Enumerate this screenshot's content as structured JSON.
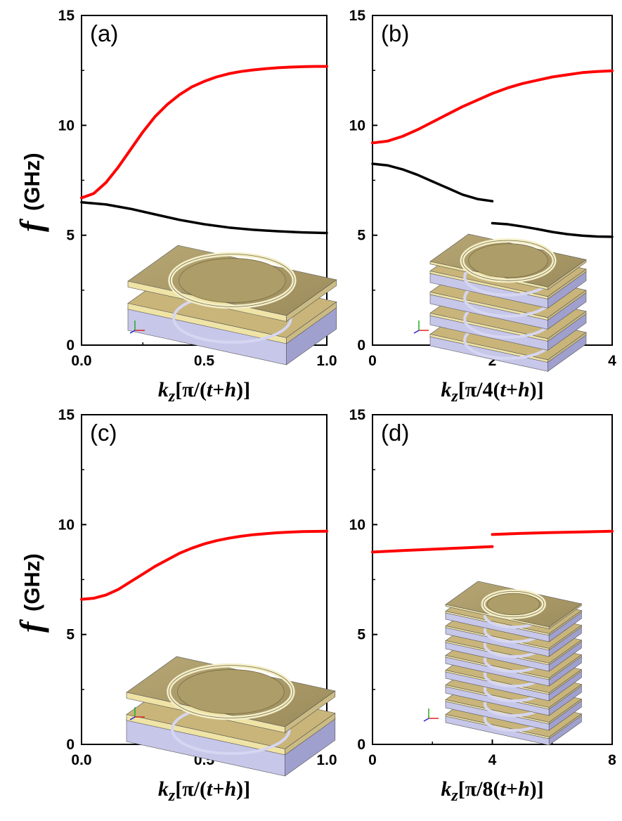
{
  "figure": {
    "ylabel_symbol": "f",
    "ylabel_unit": "(GHz)"
  },
  "chart_data": [
    {
      "type": "line",
      "panel": "(a)",
      "xlabel": "kz[π/(t+h)]",
      "xlim": [
        0,
        1
      ],
      "ylim": [
        0,
        15
      ],
      "xticks": [
        "0.0",
        "0.5",
        "1.0"
      ],
      "yticks": [
        "0",
        "5",
        "10",
        "15"
      ],
      "series": [
        {
          "name": "upper band",
          "color": "#ff0000",
          "x": [
            0,
            0.05,
            0.1,
            0.15,
            0.2,
            0.25,
            0.3,
            0.35,
            0.4,
            0.45,
            0.5,
            0.55,
            0.6,
            0.65,
            0.7,
            0.75,
            0.8,
            0.85,
            0.9,
            0.95,
            1.0
          ],
          "y": [
            6.7,
            6.9,
            7.4,
            8.1,
            8.9,
            9.7,
            10.4,
            10.95,
            11.4,
            11.75,
            12.0,
            12.2,
            12.35,
            12.45,
            12.52,
            12.58,
            12.62,
            12.65,
            12.67,
            12.68,
            12.68
          ]
        },
        {
          "name": "lower band",
          "color": "#000000",
          "x": [
            0,
            0.1,
            0.2,
            0.3,
            0.4,
            0.5,
            0.6,
            0.7,
            0.8,
            0.9,
            1.0
          ],
          "y": [
            6.5,
            6.4,
            6.2,
            5.95,
            5.7,
            5.5,
            5.35,
            5.25,
            5.18,
            5.13,
            5.1
          ]
        }
      ]
    },
    {
      "type": "line",
      "panel": "(b)",
      "xlabel": "kz[π/4(t+h)]",
      "xlim": [
        0,
        4
      ],
      "ylim": [
        0,
        15
      ],
      "xticks": [
        "0",
        "2",
        "4"
      ],
      "yticks": [
        "0",
        "5",
        "10",
        "15"
      ],
      "series": [
        {
          "name": "upper band",
          "color": "#ff0000",
          "x": [
            0,
            0.25,
            0.5,
            0.75,
            1.0,
            1.25,
            1.5,
            1.75,
            2.0,
            2.25,
            2.5,
            2.75,
            3.0,
            3.25,
            3.5,
            3.75,
            4.0
          ],
          "y": [
            9.2,
            9.28,
            9.5,
            9.8,
            10.15,
            10.5,
            10.85,
            11.15,
            11.45,
            11.7,
            11.9,
            12.05,
            12.2,
            12.3,
            12.4,
            12.45,
            12.48
          ]
        },
        {
          "name": "lower band segment 1",
          "color": "#000000",
          "x": [
            0,
            0.25,
            0.5,
            0.75,
            1.0,
            1.25,
            1.5,
            1.75,
            2.0
          ],
          "y": [
            8.25,
            8.18,
            8.0,
            7.75,
            7.45,
            7.15,
            6.85,
            6.65,
            6.55
          ]
        },
        {
          "name": "lower band segment 2",
          "color": "#000000",
          "x": [
            2.0,
            2.25,
            2.5,
            2.75,
            3.0,
            3.25,
            3.5,
            3.75,
            4.0
          ],
          "y": [
            5.55,
            5.5,
            5.4,
            5.28,
            5.15,
            5.05,
            4.98,
            4.94,
            4.93
          ]
        }
      ]
    },
    {
      "type": "line",
      "panel": "(c)",
      "xlabel": "kz[π/(t+h)]",
      "xlim": [
        0,
        1
      ],
      "ylim": [
        0,
        15
      ],
      "xticks": [
        "0.0",
        "0.5",
        "1.0"
      ],
      "yticks": [
        "0",
        "5",
        "10",
        "15"
      ],
      "series": [
        {
          "name": "band",
          "color": "#ff0000",
          "x": [
            0,
            0.05,
            0.1,
            0.15,
            0.2,
            0.25,
            0.3,
            0.35,
            0.4,
            0.45,
            0.5,
            0.55,
            0.6,
            0.65,
            0.7,
            0.75,
            0.8,
            0.85,
            0.9,
            0.95,
            1.0
          ],
          "y": [
            6.6,
            6.65,
            6.8,
            7.05,
            7.4,
            7.75,
            8.1,
            8.4,
            8.7,
            8.93,
            9.12,
            9.27,
            9.38,
            9.47,
            9.54,
            9.59,
            9.63,
            9.66,
            9.68,
            9.69,
            9.7
          ]
        }
      ]
    },
    {
      "type": "line",
      "panel": "(d)",
      "xlabel": "kz[π/8(t+h)]",
      "xlim": [
        0,
        8
      ],
      "ylim": [
        0,
        15
      ],
      "xticks": [
        "0",
        "4",
        "8"
      ],
      "yticks": [
        "0",
        "5",
        "10",
        "15"
      ],
      "series": [
        {
          "name": "band segment 1",
          "color": "#ff0000",
          "x": [
            0,
            1,
            2,
            3,
            4
          ],
          "y": [
            8.75,
            8.82,
            8.88,
            8.94,
            9.0
          ]
        },
        {
          "name": "band segment 2",
          "color": "#ff0000",
          "x": [
            4,
            5,
            6,
            7,
            8
          ],
          "y": [
            9.55,
            9.6,
            9.64,
            9.67,
            9.7
          ]
        }
      ]
    }
  ]
}
